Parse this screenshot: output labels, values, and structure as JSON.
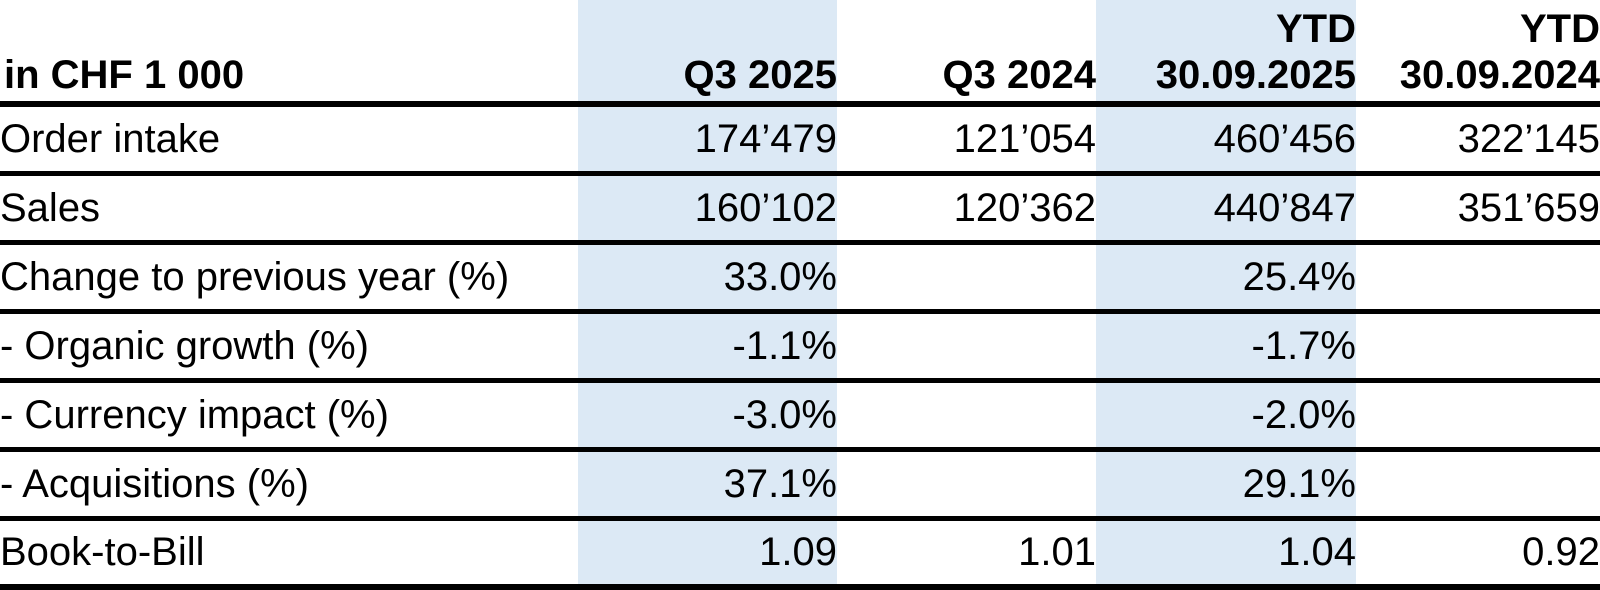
{
  "table": {
    "unit_label": "in CHF 1 000",
    "columns": [
      {
        "line1": "",
        "line2": "in CHF 1 000",
        "highlight": false
      },
      {
        "line1": "",
        "line2": "Q3 2025",
        "highlight": true
      },
      {
        "line1": "",
        "line2": "Q3 2024",
        "highlight": false
      },
      {
        "line1": "YTD",
        "line2": "30.09.2025",
        "highlight": true
      },
      {
        "line1": "YTD",
        "line2": "30.09.2024",
        "highlight": false
      }
    ],
    "rows": [
      {
        "label": "Order intake",
        "values": [
          "174’479",
          "121’054",
          "460’456",
          "322’145"
        ]
      },
      {
        "label": "Sales",
        "values": [
          "160’102",
          "120’362",
          "440’847",
          "351’659"
        ]
      },
      {
        "label": "Change to previous year (%)",
        "values": [
          "33.0%",
          "",
          "25.4%",
          ""
        ]
      },
      {
        "label": "- Organic growth (%)",
        "values": [
          "-1.1%",
          "",
          "-1.7%",
          ""
        ]
      },
      {
        "label": "- Currency impact (%)",
        "values": [
          "-3.0%",
          "",
          "-2.0%",
          ""
        ]
      },
      {
        "label": "- Acquisitions (%)",
        "values": [
          "37.1%",
          "",
          "29.1%",
          ""
        ]
      },
      {
        "label": "Book-to-Bill",
        "values": [
          "1.09",
          "1.01",
          "1.04",
          "0.92"
        ]
      }
    ]
  },
  "colors": {
    "column_highlight": "#dce9f5",
    "border": "#000000",
    "text": "#000000",
    "background": "#ffffff"
  }
}
